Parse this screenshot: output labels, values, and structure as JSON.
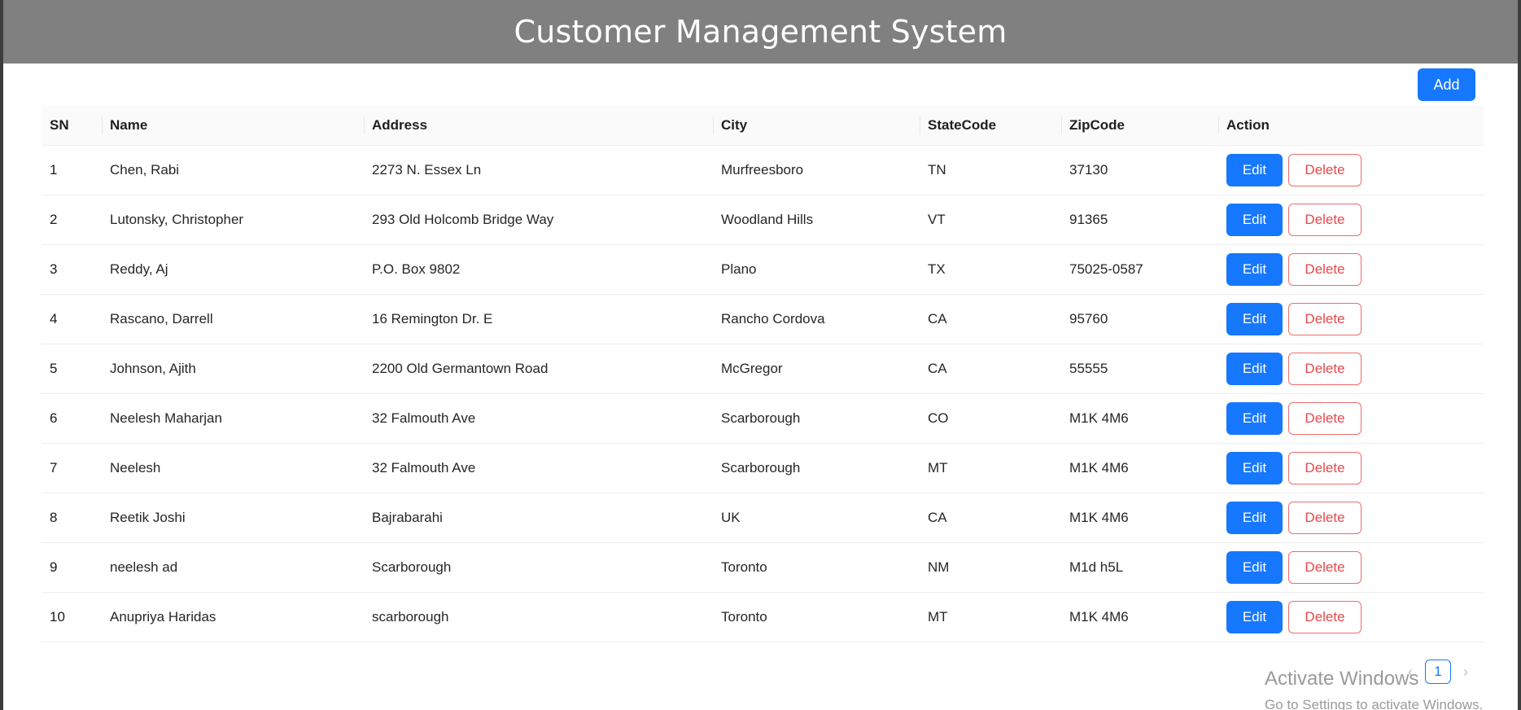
{
  "header": {
    "title": "Customer Management System"
  },
  "toolbar": {
    "add_label": "Add"
  },
  "table": {
    "columns": [
      "SN",
      "Name",
      "Address",
      "City",
      "StateCode",
      "ZipCode",
      "Action"
    ],
    "rows": [
      {
        "sn": "1",
        "name": "Chen, Rabi",
        "address": "2273 N. Essex Ln",
        "city": "Murfreesboro",
        "state": "TN",
        "zip": "37130"
      },
      {
        "sn": "2",
        "name": "Lutonsky, Christopher",
        "address": "293 Old Holcomb Bridge Way",
        "city": "Woodland Hills",
        "state": "VT",
        "zip": "91365"
      },
      {
        "sn": "3",
        "name": "Reddy, Aj",
        "address": "P.O. Box 9802",
        "city": "Plano",
        "state": "TX",
        "zip": "75025-0587"
      },
      {
        "sn": "4",
        "name": "Rascano, Darrell",
        "address": "16 Remington Dr. E",
        "city": "Rancho Cordova",
        "state": "CA",
        "zip": "95760"
      },
      {
        "sn": "5",
        "name": "Johnson, Ajith",
        "address": "2200 Old Germantown Road",
        "city": "McGregor",
        "state": "CA",
        "zip": "55555"
      },
      {
        "sn": "6",
        "name": "Neelesh Maharjan",
        "address": "32 Falmouth Ave",
        "city": "Scarborough",
        "state": "CO",
        "zip": "M1K 4M6"
      },
      {
        "sn": "7",
        "name": "Neelesh",
        "address": "32 Falmouth Ave",
        "city": "Scarborough",
        "state": "MT",
        "zip": "M1K 4M6"
      },
      {
        "sn": "8",
        "name": "Reetik Joshi",
        "address": "Bajrabarahi",
        "city": "UK",
        "state": "CA",
        "zip": "M1K 4M6"
      },
      {
        "sn": "9",
        "name": "neelesh ad",
        "address": "Scarborough",
        "city": "Toronto",
        "state": "NM",
        "zip": "M1d h5L"
      },
      {
        "sn": "10",
        "name": "Anupriya Haridas",
        "address": "scarborough",
        "city": "Toronto",
        "state": "MT",
        "zip": "M1K 4M6"
      }
    ],
    "edit_label": "Edit",
    "delete_label": "Delete"
  },
  "pagination": {
    "prev_icon": "chevron-left-icon",
    "current_page": "1",
    "next_icon": "chevron-right-icon"
  },
  "watermark": {
    "title": "Activate Windows",
    "subtitle": "Go to Settings to activate Windows."
  },
  "colors": {
    "header_bg": "#808080",
    "primary": "#1677ff",
    "danger": "#e5484d"
  }
}
